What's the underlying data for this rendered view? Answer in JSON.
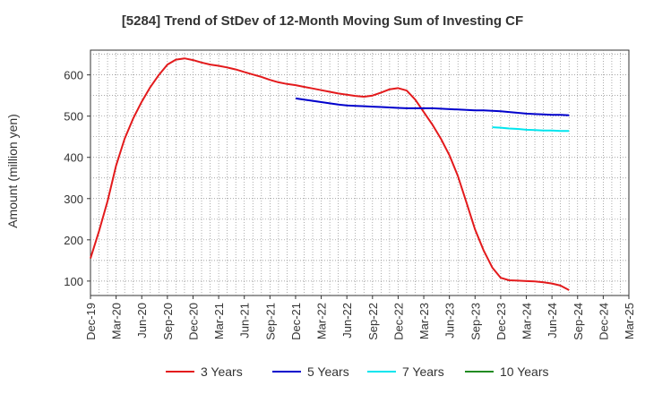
{
  "chart_data": {
    "type": "line",
    "title": "[5284]  Trend of StDev of 12-Month Moving Sum of Investing CF",
    "ylabel": "Amount (million yen)",
    "xlabel": "",
    "ylim": [
      65,
      660
    ],
    "yticks": [
      100,
      200,
      300,
      400,
      500,
      600
    ],
    "categories": [
      "Dec-19",
      "Mar-20",
      "Jun-20",
      "Sep-20",
      "Dec-20",
      "Mar-21",
      "Jun-21",
      "Sep-21",
      "Dec-21",
      "Mar-22",
      "Jun-22",
      "Sep-22",
      "Dec-22",
      "Mar-23",
      "Jun-23",
      "Sep-23",
      "Dec-23",
      "Mar-24",
      "Jun-24",
      "Sep-24",
      "Dec-24",
      "Mar-25"
    ],
    "grid": true,
    "legend_position": "bottom",
    "series": [
      {
        "name": "3 Years",
        "color": "#e31a1c",
        "points": [
          [
            0,
            155
          ],
          [
            0.33,
            220
          ],
          [
            0.67,
            295
          ],
          [
            1,
            380
          ],
          [
            1.33,
            445
          ],
          [
            1.67,
            495
          ],
          [
            2,
            535
          ],
          [
            2.33,
            570
          ],
          [
            2.67,
            600
          ],
          [
            3,
            625
          ],
          [
            3.33,
            637
          ],
          [
            3.67,
            640
          ],
          [
            4,
            636
          ],
          [
            4.33,
            630
          ],
          [
            4.67,
            625
          ],
          [
            5,
            622
          ],
          [
            5.33,
            618
          ],
          [
            5.67,
            613
          ],
          [
            6,
            607
          ],
          [
            6.33,
            601
          ],
          [
            6.67,
            595
          ],
          [
            7,
            588
          ],
          [
            7.33,
            582
          ],
          [
            7.67,
            578
          ],
          [
            8,
            575
          ],
          [
            8.33,
            571
          ],
          [
            8.67,
            567
          ],
          [
            9,
            563
          ],
          [
            9.33,
            559
          ],
          [
            9.67,
            555
          ],
          [
            10,
            552
          ],
          [
            10.33,
            549
          ],
          [
            10.67,
            547
          ],
          [
            11,
            550
          ],
          [
            11.33,
            557
          ],
          [
            11.67,
            565
          ],
          [
            12,
            568
          ],
          [
            12.33,
            562
          ],
          [
            12.67,
            540
          ],
          [
            13,
            510
          ],
          [
            13.33,
            480
          ],
          [
            13.67,
            445
          ],
          [
            14,
            405
          ],
          [
            14.33,
            355
          ],
          [
            14.67,
            290
          ],
          [
            15,
            225
          ],
          [
            15.33,
            175
          ],
          [
            15.67,
            133
          ],
          [
            16,
            108
          ],
          [
            16.33,
            102
          ],
          [
            16.67,
            101
          ],
          [
            17,
            100
          ],
          [
            17.33,
            99
          ],
          [
            17.67,
            97
          ],
          [
            18,
            94
          ],
          [
            18.33,
            89
          ],
          [
            18.67,
            78
          ]
        ]
      },
      {
        "name": "5 Years",
        "color": "#0000cc",
        "points": [
          [
            8,
            543
          ],
          [
            8.33,
            540
          ],
          [
            8.67,
            537
          ],
          [
            9,
            534
          ],
          [
            9.33,
            531
          ],
          [
            9.67,
            528
          ],
          [
            10,
            526
          ],
          [
            10.33,
            525
          ],
          [
            10.67,
            524
          ],
          [
            11,
            523
          ],
          [
            11.33,
            522
          ],
          [
            11.67,
            521
          ],
          [
            12,
            520
          ],
          [
            12.33,
            519
          ],
          [
            12.67,
            519
          ],
          [
            13,
            519
          ],
          [
            13.33,
            519
          ],
          [
            13.67,
            518
          ],
          [
            14,
            517
          ],
          [
            14.33,
            516
          ],
          [
            14.67,
            515
          ],
          [
            15,
            514
          ],
          [
            15.33,
            514
          ],
          [
            15.67,
            513
          ],
          [
            16,
            512
          ],
          [
            16.33,
            510
          ],
          [
            16.67,
            508
          ],
          [
            17,
            506
          ],
          [
            17.33,
            505
          ],
          [
            17.67,
            504
          ],
          [
            18,
            503
          ],
          [
            18.33,
            503
          ],
          [
            18.67,
            502
          ]
        ]
      },
      {
        "name": "7 Years",
        "color": "#00e5ee",
        "points": [
          [
            15.67,
            473
          ],
          [
            16,
            472
          ],
          [
            16.33,
            470
          ],
          [
            16.67,
            469
          ],
          [
            17,
            467
          ],
          [
            17.33,
            466
          ],
          [
            17.67,
            465
          ],
          [
            18,
            465
          ],
          [
            18.33,
            464
          ],
          [
            18.67,
            464
          ]
        ]
      },
      {
        "name": "10 Years",
        "color": "#228b22",
        "points": []
      }
    ]
  }
}
